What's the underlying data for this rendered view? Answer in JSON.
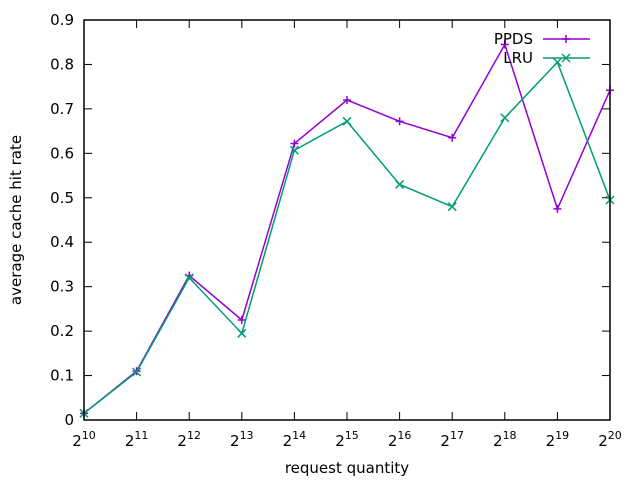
{
  "chart_data": {
    "type": "line",
    "title": "",
    "xlabel": "request quantity",
    "ylabel": "average cache hit rate",
    "x": [
      10,
      11,
      12,
      13,
      14,
      15,
      16,
      17,
      18,
      19,
      20
    ],
    "x_tick_base": "2",
    "x_tick_exponents": [
      "10",
      "11",
      "12",
      "13",
      "14",
      "15",
      "16",
      "17",
      "18",
      "19",
      "20"
    ],
    "xlim": [
      10,
      20
    ],
    "ylim": [
      0,
      0.9
    ],
    "y_ticks": [
      0,
      0.1,
      0.2,
      0.3,
      0.4,
      0.5,
      0.6,
      0.7,
      0.8,
      0.9
    ],
    "y_tick_labels": [
      "0",
      "0.1",
      "0.2",
      "0.3",
      "0.4",
      "0.5",
      "0.6",
      "0.7",
      "0.8",
      "0.9"
    ],
    "grid": false,
    "legend_position": "top-right",
    "series": [
      {
        "name": "PPDS",
        "color": "#9400d3",
        "marker": "plus",
        "values": [
          0.015,
          0.11,
          0.325,
          0.225,
          0.622,
          0.72,
          0.672,
          0.635,
          0.845,
          0.475,
          0.742
        ]
      },
      {
        "name": "LRU",
        "color": "#009e73",
        "marker": "cross",
        "values": [
          0.015,
          0.108,
          0.32,
          0.195,
          0.607,
          0.672,
          0.53,
          0.48,
          0.68,
          0.805,
          0.495
        ]
      }
    ]
  }
}
